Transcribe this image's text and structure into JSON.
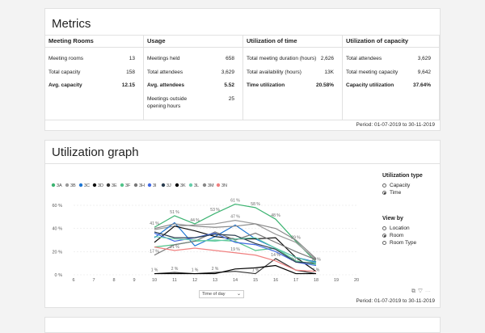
{
  "metrics": {
    "title": "Metrics",
    "columns": [
      {
        "header": "Meeting Rooms",
        "rows": [
          {
            "label": "Meeting rooms",
            "value": "13",
            "bold": false
          },
          {
            "label": "Total capacity",
            "value": "158",
            "bold": false
          },
          {
            "label": "Avg. capacity",
            "value": "12.15",
            "bold": true
          }
        ]
      },
      {
        "header": "Usage",
        "rows": [
          {
            "label": "Meetings held",
            "value": "658",
            "bold": false
          },
          {
            "label": "Total attendees",
            "value": "3,629",
            "bold": false
          },
          {
            "label": "Avg. attendees",
            "value": "5.52",
            "bold": true
          },
          {
            "label": "Meetings outside opening hours",
            "value": "25",
            "bold": false
          }
        ]
      },
      {
        "header": "Utilization of time",
        "rows": [
          {
            "label": "Total meeting duration (hours)",
            "value": "2,626",
            "bold": false
          },
          {
            "label": "Total availability (hours)",
            "value": "13K",
            "bold": false
          },
          {
            "label": "Time utilization",
            "value": "20.58%",
            "bold": true
          }
        ]
      },
      {
        "header": "Utilization of capacity",
        "rows": [
          {
            "label": "Total attendees",
            "value": "3,629",
            "bold": false
          },
          {
            "label": "Total meeting capacity",
            "value": "9,642",
            "bold": false
          },
          {
            "label": "Capacity utilization",
            "value": "37.64%",
            "bold": true
          }
        ]
      }
    ],
    "period": "Period: 01-07-2019 to 30-11-2019"
  },
  "utilization": {
    "title": "Utilization graph",
    "period": "Period: 01-07-2019 to 30-11-2019",
    "xaxis_select": "Time of day",
    "type_panel": {
      "title": "Utilization type",
      "options": [
        {
          "label": "Capacity",
          "selected": false
        },
        {
          "label": "Time",
          "selected": true
        }
      ]
    },
    "view_panel": {
      "title": "View by",
      "options": [
        {
          "label": "Location",
          "selected": false
        },
        {
          "label": "Room",
          "selected": true
        },
        {
          "label": "Room Type",
          "selected": false
        }
      ]
    },
    "toolbar_icons": [
      "copy-icon",
      "filter-icon",
      "more-options-icon"
    ]
  },
  "chart_data": {
    "type": "line",
    "title": "",
    "xlabel": "Time of day",
    "ylabel": "",
    "x_ticks": [
      6,
      7,
      8,
      9,
      10,
      11,
      12,
      13,
      14,
      15,
      16,
      17,
      18,
      19,
      20
    ],
    "y_ticks": [
      "0 %",
      "20 %",
      "40 %",
      "60 %"
    ],
    "ylim": [
      0,
      60
    ],
    "xlim": [
      6,
      20
    ],
    "grid": true,
    "legend_placement": "top-left",
    "series": [
      {
        "name": "3A",
        "color": "#3cb371",
        "x": [
          10,
          11,
          12,
          13,
          14,
          15,
          16,
          17,
          18
        ],
        "values": [
          41,
          51,
          44,
          53,
          61,
          58,
          48,
          29,
          11
        ]
      },
      {
        "name": "3B",
        "color": "#999999",
        "x": [
          10,
          11,
          12,
          13,
          14,
          15,
          16,
          17,
          18
        ],
        "values": [
          39,
          42,
          43,
          44,
          47,
          44,
          35,
          28,
          13
        ]
      },
      {
        "name": "3C",
        "color": "#1f77d4",
        "x": [
          10,
          11,
          12,
          13,
          14,
          15,
          16,
          17,
          18
        ],
        "values": [
          32,
          45,
          25,
          33,
          43,
          31,
          23,
          15,
          11
        ]
      },
      {
        "name": "3D",
        "color": "#111111",
        "x": [
          10,
          11,
          12,
          13,
          14,
          15,
          16,
          17,
          18
        ],
        "values": [
          28,
          42,
          38,
          33,
          31,
          31,
          32,
          15,
          3
        ]
      },
      {
        "name": "3E",
        "color": "#333333",
        "x": [
          10,
          11,
          12,
          13,
          14,
          15,
          16,
          17,
          18
        ],
        "values": [
          1,
          2,
          1,
          2,
          3,
          1,
          14,
          4,
          1
        ]
      },
      {
        "name": "3F",
        "color": "#52c48a",
        "x": [
          10,
          11,
          12,
          13,
          14,
          15,
          16,
          17,
          18
        ],
        "values": [
          24,
          26,
          29,
          30,
          29,
          21,
          23,
          12,
          9
        ]
      },
      {
        "name": "3H",
        "color": "#777777",
        "x": [
          10,
          11,
          12,
          13,
          14,
          15,
          16,
          17,
          18
        ],
        "values": [
          17,
          26,
          29,
          37,
          30,
          36,
          28,
          20,
          13
        ]
      },
      {
        "name": "3I",
        "color": "#4169e1",
        "x": [
          10,
          11,
          12,
          13,
          14,
          15,
          16,
          17,
          18
        ],
        "values": [
          36,
          29,
          32,
          36,
          28,
          26,
          20,
          11,
          8
        ]
      },
      {
        "name": "3J",
        "color": "#2c3e50",
        "x": [
          10,
          11,
          12,
          13,
          14,
          15,
          16,
          17,
          18
        ],
        "values": [
          37,
          32,
          32,
          35,
          34,
          27,
          22,
          11,
          10
        ]
      },
      {
        "name": "3K",
        "color": "#000000",
        "x": [
          10,
          11,
          12,
          13,
          14,
          15,
          16,
          17,
          18
        ],
        "values": [
          1,
          1,
          1,
          1,
          5,
          6,
          8,
          1,
          1
        ]
      },
      {
        "name": "3L",
        "color": "#66cdaa",
        "x": [
          10,
          11,
          12,
          13,
          14,
          15,
          16,
          17,
          18
        ],
        "values": [
          33,
          31,
          30,
          29,
          31,
          32,
          23,
          15,
          10
        ]
      },
      {
        "name": "3M",
        "color": "#888888",
        "x": [
          10,
          11,
          12,
          13,
          14,
          15,
          16,
          17,
          18
        ],
        "values": [
          40,
          44,
          42,
          41,
          42,
          44,
          40,
          30,
          14
        ]
      },
      {
        "name": "3N",
        "color": "#f08080",
        "x": [
          10,
          11,
          12,
          13,
          14,
          15,
          16,
          17,
          18
        ],
        "values": [
          24,
          21,
          23,
          21,
          19,
          17,
          12,
          4,
          3
        ]
      }
    ],
    "data_labels": [
      {
        "x": 11,
        "y": 51,
        "text": "51 %"
      },
      {
        "x": 14,
        "y": 61,
        "text": "61 %"
      },
      {
        "x": 15,
        "y": 58,
        "text": "58 %"
      },
      {
        "x": 13,
        "y": 53,
        "text": "53 %"
      },
      {
        "x": 12,
        "y": 44,
        "text": "44 %"
      },
      {
        "x": 14,
        "y": 47,
        "text": "47 %"
      },
      {
        "x": 16,
        "y": 48,
        "text": "48 %"
      },
      {
        "x": 17,
        "y": 29,
        "text": "29 %"
      },
      {
        "x": 10,
        "y": 41,
        "text": "41 %"
      },
      {
        "x": 11,
        "y": 21,
        "text": "21 %"
      },
      {
        "x": 10,
        "y": 17,
        "text": "17 %"
      },
      {
        "x": 14,
        "y": 19,
        "text": "19 %"
      },
      {
        "x": 11,
        "y": 2,
        "text": "2 %"
      },
      {
        "x": 12,
        "y": 1,
        "text": "1 %"
      },
      {
        "x": 13,
        "y": 2,
        "text": "2 %"
      },
      {
        "x": 15,
        "y": 1,
        "text": "1 %"
      },
      {
        "x": 16,
        "y": 14,
        "text": "14 %"
      },
      {
        "x": 17,
        "y": 10,
        "text": "10 %"
      },
      {
        "x": 18,
        "y": 10,
        "text": "10 %"
      },
      {
        "x": 18,
        "y": 1,
        "text": "1 %"
      },
      {
        "x": 10,
        "y": 1,
        "text": "1 %"
      }
    ]
  }
}
